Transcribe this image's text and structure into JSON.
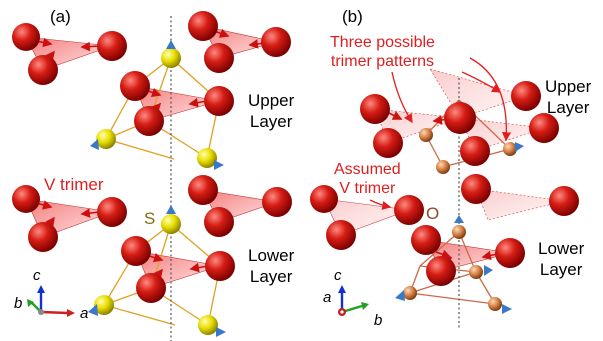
{
  "panels": {
    "a": {
      "label": "(a)",
      "upper_layer": "Upper\nLayer",
      "lower_layer": "Lower\nLayer",
      "trimer_label": "V trimer",
      "atom_label": "S",
      "axes": {
        "c": "c",
        "b": "b",
        "a": "a"
      }
    },
    "b": {
      "label": "(b)",
      "upper_layer": "Upper\nLayer",
      "lower_layer": "Lower\nLayer",
      "patterns_note": "Three possible\ntrimer patterns",
      "assumed_note": "Assumed\nV trimer",
      "atom_label": "O",
      "axes": {
        "c": "c",
        "a": "a",
        "b": "b"
      }
    }
  },
  "colors": {
    "vanadium": "#cc1010",
    "sulfur": "#e9e000",
    "oxygen": "#d98a48",
    "arrow": "#3a78c8",
    "annotation": "#e01e1e",
    "bond_a": "#e0a020",
    "bond_b": "#c96a4a"
  }
}
